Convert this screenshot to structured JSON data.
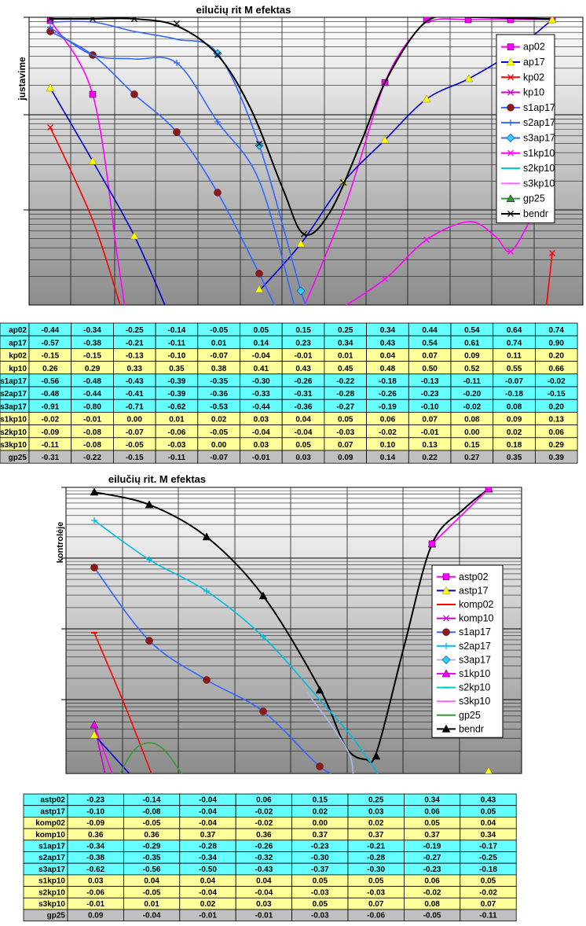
{
  "chart_data": [
    {
      "type": "line",
      "title": "eilučių rit M efektas",
      "ylabel": "justavime",
      "legend_position": "right",
      "grid": true,
      "series": [
        {
          "name": "ap02",
          "color": "#ff00ff",
          "marker": "square",
          "values": [
            -0.44,
            -0.34,
            -0.25,
            -0.14,
            -0.05,
            0.05,
            0.15,
            0.25,
            0.34,
            0.44,
            0.54,
            0.64,
            0.74
          ]
        },
        {
          "name": "ap17",
          "color": "#0000cc",
          "marker": "triangle",
          "values": [
            -0.57,
            -0.38,
            -0.21,
            -0.11,
            0.01,
            0.14,
            0.23,
            0.34,
            0.43,
            0.54,
            0.61,
            0.74,
            0.9
          ]
        },
        {
          "name": "kp02",
          "color": "#ff0000",
          "marker": "x",
          "values": [
            -0.15,
            -0.15,
            -0.13,
            -0.1,
            -0.07,
            -0.04,
            -0.01,
            0.01,
            0.04,
            0.07,
            0.09,
            0.11,
            0.2
          ]
        },
        {
          "name": "kp10",
          "color": "#cc00cc",
          "marker": "x",
          "values": [
            0.26,
            0.29,
            0.33,
            0.35,
            0.38,
            0.41,
            0.43,
            0.45,
            0.48,
            0.5,
            0.52,
            0.55,
            0.66
          ]
        },
        {
          "name": "s1ap17",
          "color": "#3366ff",
          "marker": "circle",
          "values": [
            -0.56,
            -0.48,
            -0.43,
            -0.39,
            -0.35,
            -0.3,
            -0.26,
            -0.22,
            -0.18,
            -0.13,
            -0.11,
            -0.07,
            -0.02
          ]
        },
        {
          "name": "s2ap17",
          "color": "#3366ff",
          "marker": "plus",
          "values": [
            -0.48,
            -0.44,
            -0.41,
            -0.39,
            -0.36,
            -0.33,
            -0.31,
            -0.28,
            -0.26,
            -0.23,
            -0.2,
            -0.18,
            -0.15
          ]
        },
        {
          "name": "s3ap17",
          "color": "#3366ff",
          "marker": "diamond",
          "values": [
            -0.91,
            -0.8,
            -0.71,
            -0.62,
            -0.53,
            -0.44,
            -0.36,
            -0.27,
            -0.19,
            -0.1,
            -0.02,
            0.08,
            0.2
          ]
        },
        {
          "name": "s1kp10",
          "color": "#ff00ff",
          "marker": "x",
          "values": [
            -0.02,
            -0.01,
            0.0,
            0.01,
            0.02,
            0.03,
            0.04,
            0.05,
            0.06,
            0.07,
            0.08,
            0.09,
            0.13
          ]
        },
        {
          "name": "s2kp10",
          "color": "#00cccc",
          "marker": "dash",
          "values": [
            -0.09,
            -0.08,
            -0.07,
            -0.06,
            -0.05,
            -0.04,
            -0.04,
            -0.03,
            -0.02,
            -0.01,
            0.0,
            0.02,
            0.06
          ]
        },
        {
          "name": "s3kp10",
          "color": "#ff66ff",
          "marker": "dash",
          "values": [
            -0.11,
            -0.08,
            -0.05,
            -0.03,
            0.0,
            0.03,
            0.05,
            0.07,
            0.1,
            0.13,
            0.15,
            0.18,
            0.29
          ]
        },
        {
          "name": "gp25",
          "color": "#339933",
          "marker": "triangle",
          "values": [
            -0.31,
            -0.22,
            -0.15,
            -0.11,
            -0.07,
            -0.01,
            0.03,
            0.09,
            0.14,
            0.22,
            0.27,
            0.35,
            0.39
          ]
        },
        {
          "name": "bendr",
          "color": "#000000",
          "marker": "x",
          "values": []
        }
      ],
      "table": {
        "rows": [
          {
            "label": "ap02",
            "band": "cyan",
            "values": [
              "-0.44",
              "-0.34",
              "-0.25",
              "-0.14",
              "-0.05",
              "0.05",
              "0.15",
              "0.25",
              "0.34",
              "0.44",
              "0.54",
              "0.64",
              "0.74"
            ]
          },
          {
            "label": "ap17",
            "band": "cyan",
            "values": [
              "-0.57",
              "-0.38",
              "-0.21",
              "-0.11",
              "0.01",
              "0.14",
              "0.23",
              "0.34",
              "0.43",
              "0.54",
              "0.61",
              "0.74",
              "0.90"
            ]
          },
          {
            "label": "kp02",
            "band": "yellow",
            "values": [
              "-0.15",
              "-0.15",
              "-0.13",
              "-0.10",
              "-0.07",
              "-0.04",
              "-0.01",
              "0.01",
              "0.04",
              "0.07",
              "0.09",
              "0.11",
              "0.20"
            ]
          },
          {
            "label": "kp10",
            "band": "yellow",
            "values": [
              "0.26",
              "0.29",
              "0.33",
              "0.35",
              "0.38",
              "0.41",
              "0.43",
              "0.45",
              "0.48",
              "0.50",
              "0.52",
              "0.55",
              "0.66"
            ]
          },
          {
            "label": "s1ap17",
            "band": "cyan",
            "values": [
              "-0.56",
              "-0.48",
              "-0.43",
              "-0.39",
              "-0.35",
              "-0.30",
              "-0.26",
              "-0.22",
              "-0.18",
              "-0.13",
              "-0.11",
              "-0.07",
              "-0.02"
            ]
          },
          {
            "label": "s2ap17",
            "band": "cyan",
            "values": [
              "-0.48",
              "-0.44",
              "-0.41",
              "-0.39",
              "-0.36",
              "-0.33",
              "-0.31",
              "-0.28",
              "-0.26",
              "-0.23",
              "-0.20",
              "-0.18",
              "-0.15"
            ]
          },
          {
            "label": "s3ap17",
            "band": "cyan",
            "values": [
              "-0.91",
              "-0.80",
              "-0.71",
              "-0.62",
              "-0.53",
              "-0.44",
              "-0.36",
              "-0.27",
              "-0.19",
              "-0.10",
              "-0.02",
              "0.08",
              "0.20"
            ]
          },
          {
            "label": "s1kp10",
            "band": "yellow",
            "values": [
              "-0.02",
              "-0.01",
              "0.00",
              "0.01",
              "0.02",
              "0.03",
              "0.04",
              "0.05",
              "0.06",
              "0.07",
              "0.08",
              "0.09",
              "0.13"
            ]
          },
          {
            "label": "s2kp10",
            "band": "yellow",
            "values": [
              "-0.09",
              "-0.08",
              "-0.07",
              "-0.06",
              "-0.05",
              "-0.04",
              "-0.04",
              "-0.03",
              "-0.02",
              "-0.01",
              "0.00",
              "0.02",
              "0.06"
            ]
          },
          {
            "label": "s3kp10",
            "band": "yellow",
            "values": [
              "-0.11",
              "-0.08",
              "-0.05",
              "-0.03",
              "0.00",
              "0.03",
              "0.05",
              "0.07",
              "0.10",
              "0.13",
              "0.15",
              "0.18",
              "0.29"
            ]
          },
          {
            "label": "gp25",
            "band": "gray",
            "values": [
              "-0.31",
              "-0.22",
              "-0.15",
              "-0.11",
              "-0.07",
              "-0.01",
              "0.03",
              "0.09",
              "0.14",
              "0.22",
              "0.27",
              "0.35",
              "0.39"
            ]
          }
        ]
      }
    },
    {
      "type": "line",
      "title": "eilučių rit. M efektas",
      "ylabel": "kontrolėje",
      "legend_position": "right",
      "grid": true,
      "series": [
        {
          "name": "astp02",
          "color": "#ff00ff",
          "marker": "square",
          "values": [
            -0.23,
            -0.14,
            -0.04,
            0.06,
            0.15,
            0.25,
            0.34,
            0.43
          ]
        },
        {
          "name": "astp17",
          "color": "#0000cc",
          "marker": "triangle",
          "values": [
            -0.1,
            -0.08,
            -0.04,
            -0.02,
            0.02,
            0.03,
            0.06,
            0.05
          ]
        },
        {
          "name": "komp02",
          "color": "#ff0000",
          "marker": "dash",
          "values": [
            -0.09,
            -0.05,
            -0.04,
            -0.02,
            0.0,
            0.02,
            0.05,
            0.04
          ]
        },
        {
          "name": "komp10",
          "color": "#cc00cc",
          "marker": "x",
          "values": [
            0.36,
            0.36,
            0.37,
            0.36,
            0.37,
            0.37,
            0.37,
            0.34
          ]
        },
        {
          "name": "s1ap17",
          "color": "#3366ff",
          "marker": "circle",
          "values": [
            -0.34,
            -0.29,
            -0.28,
            -0.26,
            -0.23,
            -0.21,
            -0.19,
            -0.17
          ]
        },
        {
          "name": "s2ap17",
          "color": "#00bbdd",
          "marker": "plus",
          "values": [
            -0.38,
            -0.35,
            -0.34,
            -0.32,
            -0.3,
            -0.28,
            -0.27,
            -0.25
          ]
        },
        {
          "name": "s3ap17",
          "color": "#aabbee",
          "marker": "diamond",
          "values": [
            -0.62,
            -0.56,
            -0.5,
            -0.43,
            -0.37,
            -0.3,
            -0.23,
            -0.18
          ]
        },
        {
          "name": "s1kp10",
          "color": "#ff00ff",
          "marker": "triangle",
          "values": [
            0.03,
            0.04,
            0.04,
            0.04,
            0.05,
            0.05,
            0.06,
            0.05
          ]
        },
        {
          "name": "s2kp10",
          "color": "#00cccc",
          "marker": "dash",
          "values": [
            -0.06,
            -0.05,
            -0.04,
            -0.04,
            -0.03,
            -0.03,
            -0.02,
            -0.02
          ]
        },
        {
          "name": "s3kp10",
          "color": "#ff66ff",
          "marker": "dash",
          "values": [
            -0.01,
            0.01,
            0.02,
            0.03,
            0.05,
            0.07,
            0.08,
            0.07
          ]
        },
        {
          "name": "gp25",
          "color": "#339933",
          "marker": "none",
          "values": [
            0.09,
            -0.04,
            -0.01,
            -0.01,
            -0.03,
            -0.06,
            -0.05,
            -0.11
          ]
        },
        {
          "name": "bendr",
          "color": "#000000",
          "marker": "triangle",
          "values": []
        }
      ],
      "table": {
        "rows": [
          {
            "label": "astp02",
            "band": "cyan",
            "values": [
              "-0.23",
              "-0.14",
              "-0.04",
              "0.06",
              "0.15",
              "0.25",
              "0.34",
              "0.43"
            ]
          },
          {
            "label": "astp17",
            "band": "cyan",
            "values": [
              "-0.10",
              "-0.08",
              "-0.04",
              "-0.02",
              "0.02",
              "0.03",
              "0.06",
              "0.05"
            ]
          },
          {
            "label": "komp02",
            "band": "yellow",
            "values": [
              "-0.09",
              "-0.05",
              "-0.04",
              "-0.02",
              "0.00",
              "0.02",
              "0.05",
              "0.04"
            ]
          },
          {
            "label": "komp10",
            "band": "yellow",
            "values": [
              "0.36",
              "0.36",
              "0.37",
              "0.36",
              "0.37",
              "0.37",
              "0.37",
              "0.34"
            ]
          },
          {
            "label": "s1ap17",
            "band": "cyan",
            "values": [
              "-0.34",
              "-0.29",
              "-0.28",
              "-0.26",
              "-0.23",
              "-0.21",
              "-0.19",
              "-0.17"
            ]
          },
          {
            "label": "s2ap17",
            "band": "cyan",
            "values": [
              "-0.38",
              "-0.35",
              "-0.34",
              "-0.32",
              "-0.30",
              "-0.28",
              "-0.27",
              "-0.25"
            ]
          },
          {
            "label": "s3ap17",
            "band": "cyan",
            "values": [
              "-0.62",
              "-0.56",
              "-0.50",
              "-0.43",
              "-0.37",
              "-0.30",
              "-0.23",
              "-0.18"
            ]
          },
          {
            "label": "s1kp10",
            "band": "yellow",
            "values": [
              "0.03",
              "0.04",
              "0.04",
              "0.04",
              "0.05",
              "0.05",
              "0.06",
              "0.05"
            ]
          },
          {
            "label": "s2kp10",
            "band": "yellow",
            "values": [
              "-0.06",
              "-0.05",
              "-0.04",
              "-0.04",
              "-0.03",
              "-0.03",
              "-0.02",
              "-0.02"
            ]
          },
          {
            "label": "s3kp10",
            "band": "yellow",
            "values": [
              "-0.01",
              "0.01",
              "0.02",
              "0.03",
              "0.05",
              "0.07",
              "0.08",
              "0.07"
            ]
          },
          {
            "label": "gp25",
            "band": "gray",
            "values": [
              "0.09",
              "-0.04",
              "-0.01",
              "-0.01",
              "-0.03",
              "-0.06",
              "-0.05",
              "-0.11"
            ]
          }
        ]
      }
    }
  ]
}
